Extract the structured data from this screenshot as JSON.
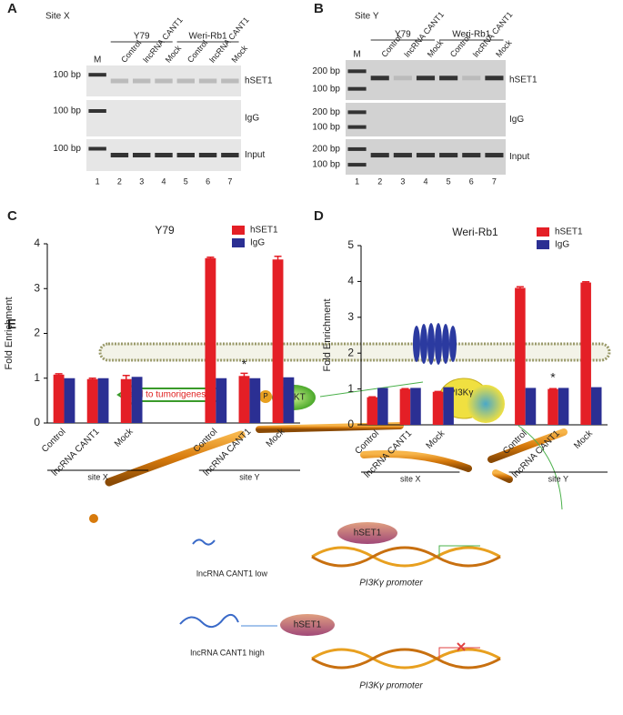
{
  "panel_labels": [
    "A",
    "B",
    "C",
    "D",
    "E"
  ],
  "gels": [
    {
      "site": "Site X",
      "cell_lines": [
        "Y79",
        "Weri-Rb1"
      ],
      "lanes": [
        "Control",
        "lncRNA CANT1",
        "Mock"
      ],
      "marker": "M",
      "rows": [
        {
          "label": "hSET1",
          "markers": [
            "100 bp"
          ]
        },
        {
          "label": "IgG",
          "markers": [
            "100 bp"
          ]
        },
        {
          "label": "Input",
          "markers": [
            "100 bp"
          ]
        }
      ],
      "lane_numbers": [
        1,
        2,
        3,
        4,
        5,
        6,
        7
      ]
    },
    {
      "site": "Site Y",
      "cell_lines": [
        "Y79",
        "Weri-Rb1"
      ],
      "lanes": [
        "Control",
        "lncRNA CANT1",
        "Mock"
      ],
      "marker": "M",
      "rows": [
        {
          "label": "hSET1",
          "markers": [
            "200 bp",
            "100 bp"
          ]
        },
        {
          "label": "IgG",
          "markers": [
            "200 bp",
            "100 bp"
          ]
        },
        {
          "label": "Input",
          "markers": [
            "200 bp",
            "100 bp"
          ]
        }
      ],
      "lane_numbers": [
        1,
        2,
        3,
        4,
        5,
        6,
        7
      ]
    }
  ],
  "chart_data": [
    {
      "type": "bar",
      "title": "Y79",
      "y_label": "Fold Enrichment",
      "categories": [
        "Control",
        "lncRNA CANT1",
        "Mock",
        "Control",
        "lncRNA CANT1",
        "Mock"
      ],
      "groups": [
        "site X",
        "site Y"
      ],
      "series": [
        {
          "name": "hSET1",
          "color": "#e41f26",
          "values": [
            1.08,
            0.98,
            0.98,
            3.68,
            1.05,
            3.65
          ],
          "errors": [
            0.02,
            0.02,
            0.08,
            0.02,
            0.06,
            0.07
          ],
          "value_annotations": [
            null,
            null,
            null,
            null,
            "*",
            null
          ]
        },
        {
          "name": "IgG",
          "color": "#2b2f93",
          "values": [
            1.0,
            1.0,
            1.03,
            1.0,
            1.0,
            1.02
          ]
        }
      ],
      "ylim": [
        0,
        4
      ],
      "yticks": [
        0,
        1,
        2,
        3,
        4
      ],
      "legend": "top-right"
    },
    {
      "type": "bar",
      "title": "Weri-Rb1",
      "y_label": "Fold Enrichment",
      "categories": [
        "Control",
        "lncRNA CANT1",
        "Mock",
        "Control",
        "lncRNA CANT1",
        "Mock"
      ],
      "groups": [
        "site X",
        "site Y"
      ],
      "series": [
        {
          "name": "hSET1",
          "color": "#e41f26",
          "values": [
            0.77,
            1.0,
            0.92,
            3.82,
            1.0,
            3.97
          ],
          "errors": [
            0.01,
            0.01,
            0.01,
            0.03,
            0.01,
            0.02
          ],
          "value_annotations": [
            null,
            null,
            null,
            null,
            "*",
            null
          ]
        },
        {
          "name": "IgG",
          "color": "#2b2f93",
          "values": [
            1.03,
            1.03,
            1.05,
            1.03,
            1.03,
            1.05
          ]
        }
      ],
      "ylim": [
        0,
        5
      ],
      "yticks": [
        0,
        1,
        2,
        3,
        4,
        5
      ],
      "legend": "top-right"
    }
  ],
  "diagram": {
    "arrow_label": "lead to tumorigenesis",
    "phospho": "P",
    "akt": "AKT",
    "pi3k": "PI3Kγ",
    "low": {
      "lncrna": "lncRNA CANT1 low",
      "protein": "hSET1",
      "promoter": "PI3Kγ promoter"
    },
    "high": {
      "lncrna": "lncRNA CANT1 high",
      "protein": "hSET1",
      "promoter": "PI3Kγ promoter"
    }
  }
}
